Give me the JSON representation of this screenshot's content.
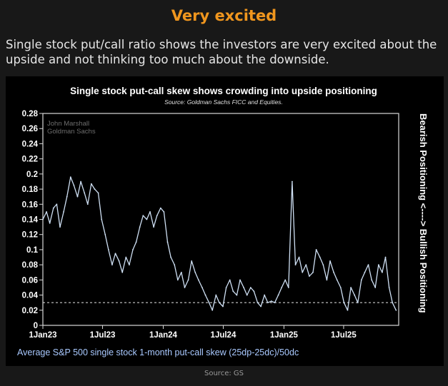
{
  "header": {
    "title": "Very excited",
    "description": "Single stock put/call ratio shows the investors are very excited about the upside and not thinking too much about the downside."
  },
  "footer": {
    "source": "Source: GS"
  },
  "colors": {
    "accent": "#f0961e",
    "line": "#cfe0f4",
    "ref_line": "#e8e8e8",
    "caption": "#a9c9ff"
  },
  "chart_data": {
    "type": "line",
    "title": "Single stock put-call skew shows crowding into upside positioning",
    "subtitle": "Source: Goldman Sachs FICC and Equities.",
    "watermark": "John Marshall\nGoldman Sachs",
    "right_label": "Bearish Positioning <----> Bullish Positioning",
    "caption": "Average S&P 500 single stock 1-month put-call skew (25dp-25dc)/50dc",
    "xlabel": "",
    "ylabel": "",
    "ylim": [
      0,
      0.28
    ],
    "y_ticks": [
      0,
      0.02,
      0.04,
      0.06,
      0.08,
      0.1,
      0.12,
      0.14,
      0.16,
      0.18,
      0.2,
      0.22,
      0.24,
      0.26,
      0.28
    ],
    "y_tick_labels": [
      "0",
      "0.02",
      "0.04",
      "0.06",
      "0.08",
      "0.1",
      "0.12",
      "0.14",
      "0.16",
      "0.18",
      "0.2",
      "0.22",
      "0.24",
      "0.26",
      "0.28"
    ],
    "xlim": [
      "2023-01-01",
      "2025-12-15"
    ],
    "x_ticks": [
      "2023-01-01",
      "2023-07-01",
      "2024-01-01",
      "2024-07-01",
      "2025-01-01",
      "2025-07-01"
    ],
    "x_tick_labels": [
      "1Jan23",
      "1Jul23",
      "1Jan24",
      "1Jul24",
      "1Jan25",
      "1Jul25"
    ],
    "reference_line": {
      "y": 0.03,
      "style": "dashed"
    },
    "grid": false,
    "series": [
      {
        "x": [
          "2023-01-01",
          "2023-01-12",
          "2023-01-22",
          "2023-02-02",
          "2023-02-12",
          "2023-02-22",
          "2023-03-05",
          "2023-03-15",
          "2023-03-26",
          "2023-04-05",
          "2023-04-16",
          "2023-04-26",
          "2023-05-07",
          "2023-05-17",
          "2023-05-28",
          "2023-06-07",
          "2023-06-18",
          "2023-06-28",
          "2023-07-09",
          "2023-07-19",
          "2023-07-30",
          "2023-08-09",
          "2023-08-20",
          "2023-08-30",
          "2023-09-10",
          "2023-09-20",
          "2023-10-01",
          "2023-10-11",
          "2023-10-22",
          "2023-11-01",
          "2023-11-12",
          "2023-11-22",
          "2023-12-03",
          "2023-12-13",
          "2023-12-24",
          "2024-01-03",
          "2024-01-14",
          "2024-01-24",
          "2024-02-04",
          "2024-02-14",
          "2024-02-25",
          "2024-03-06",
          "2024-03-17",
          "2024-03-27",
          "2024-04-07",
          "2024-04-17",
          "2024-04-28",
          "2024-05-08",
          "2024-05-19",
          "2024-05-29",
          "2024-06-09",
          "2024-06-19",
          "2024-06-30",
          "2024-07-10",
          "2024-07-21",
          "2024-07-31",
          "2024-08-11",
          "2024-08-21",
          "2024-09-01",
          "2024-09-11",
          "2024-09-22",
          "2024-10-02",
          "2024-10-13",
          "2024-10-23",
          "2024-11-03",
          "2024-11-13",
          "2024-11-24",
          "2024-12-04",
          "2024-12-15",
          "2024-12-25",
          "2025-01-05",
          "2025-01-15",
          "2025-01-26",
          "2025-02-05",
          "2025-02-16",
          "2025-02-26",
          "2025-03-09",
          "2025-03-19",
          "2025-03-30",
          "2025-04-09",
          "2025-04-20",
          "2025-04-30",
          "2025-05-11",
          "2025-05-21",
          "2025-06-01",
          "2025-06-11",
          "2025-06-22",
          "2025-07-02",
          "2025-07-13",
          "2025-07-23",
          "2025-08-03",
          "2025-08-13",
          "2025-08-24",
          "2025-09-03",
          "2025-09-14",
          "2025-09-24",
          "2025-10-05",
          "2025-10-15",
          "2025-10-26",
          "2025-11-05",
          "2025-11-16",
          "2025-11-26",
          "2025-12-07"
        ],
        "values": [
          0.14,
          0.15,
          0.135,
          0.155,
          0.16,
          0.13,
          0.15,
          0.17,
          0.196,
          0.185,
          0.17,
          0.19,
          0.175,
          0.16,
          0.187,
          0.18,
          0.175,
          0.14,
          0.12,
          0.1,
          0.08,
          0.095,
          0.085,
          0.07,
          0.09,
          0.08,
          0.1,
          0.11,
          0.13,
          0.145,
          0.14,
          0.15,
          0.13,
          0.145,
          0.155,
          0.15,
          0.11,
          0.09,
          0.08,
          0.06,
          0.07,
          0.05,
          0.06,
          0.085,
          0.07,
          0.06,
          0.05,
          0.04,
          0.03,
          0.02,
          0.04,
          0.03,
          0.025,
          0.05,
          0.06,
          0.045,
          0.04,
          0.06,
          0.05,
          0.04,
          0.05,
          0.045,
          0.03,
          0.025,
          0.04,
          0.03,
          0.032,
          0.03,
          0.04,
          0.05,
          0.06,
          0.05,
          0.19,
          0.08,
          0.09,
          0.07,
          0.08,
          0.065,
          0.07,
          0.1,
          0.09,
          0.08,
          0.06,
          0.085,
          0.07,
          0.06,
          0.05,
          0.03,
          0.02,
          0.05,
          0.04,
          0.03,
          0.06,
          0.07,
          0.08,
          0.06,
          0.05,
          0.08,
          0.07,
          0.09,
          0.05,
          0.03,
          0.02
        ]
      }
    ]
  }
}
